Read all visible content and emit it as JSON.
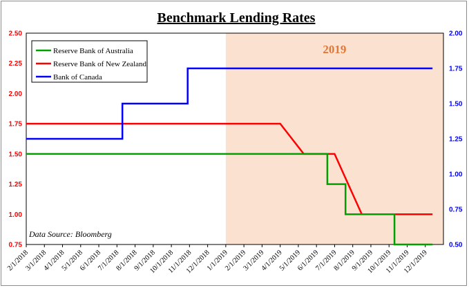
{
  "chart_data": {
    "type": "line",
    "title": "Benchmark Lending Rates",
    "x_categories": [
      "2/1/2018",
      "3/1/2018",
      "4/1/2018",
      "5/1/2018",
      "6/1/2018",
      "7/1/2018",
      "8/1/2018",
      "9/1/2018",
      "10/1/2018",
      "11/1/2018",
      "12/1/2018",
      "1/1/2019",
      "2/1/2019",
      "3/1/2019",
      "4/1/2019",
      "5/1/2019",
      "6/1/2019",
      "7/1/2019",
      "8/1/2019",
      "9/1/2019",
      "10/1/2019",
      "11/1/2019",
      "12/1/2019"
    ],
    "y_left": {
      "ticks": [
        "2.50",
        "2.25",
        "2.00",
        "1.75",
        "1.50",
        "1.25",
        "1.00",
        "0.75"
      ],
      "range": [
        0.75,
        2.5
      ],
      "color": "#ff0000"
    },
    "y_right": {
      "ticks": [
        "2.00",
        "1.75",
        "1.50",
        "1.25",
        "1.00",
        "0.75",
        "0.50"
      ],
      "range": [
        0.5,
        2.0
      ],
      "color": "#0000ff"
    },
    "series": [
      {
        "name": "Reserve Bank of Australia",
        "color": "#00a000",
        "axis": "left",
        "step_points": [
          [
            0,
            1.5
          ],
          [
            16.6,
            1.5
          ],
          [
            16.6,
            1.25
          ],
          [
            17.6,
            1.25
          ],
          [
            17.6,
            1.0
          ],
          [
            20.3,
            1.0
          ],
          [
            20.3,
            0.75
          ],
          [
            22.4,
            0.75
          ]
        ]
      },
      {
        "name": "Reserve Bank of New Zealand",
        "color": "#ff0000",
        "axis": "left",
        "points": [
          [
            0,
            1.75
          ],
          [
            14.0,
            1.75
          ],
          [
            15.3,
            1.5
          ],
          [
            17.0,
            1.5
          ],
          [
            18.5,
            1.0
          ],
          [
            22.4,
            1.0
          ]
        ]
      },
      {
        "name": "Bank of Canada",
        "color": "#0000ff",
        "axis": "right",
        "step_points": [
          [
            0,
            1.25
          ],
          [
            5.3,
            1.25
          ],
          [
            5.3,
            1.5
          ],
          [
            8.9,
            1.5
          ],
          [
            8.9,
            1.75
          ],
          [
            22.4,
            1.75
          ]
        ]
      }
    ],
    "shaded_region": {
      "label": "2019",
      "x_start": 11,
      "x_end": 22.4,
      "fill": "#fbe1d0",
      "label_color": "#e07838"
    },
    "annotation": "Data Source: Bloomberg",
    "legend_position": "top-left"
  }
}
